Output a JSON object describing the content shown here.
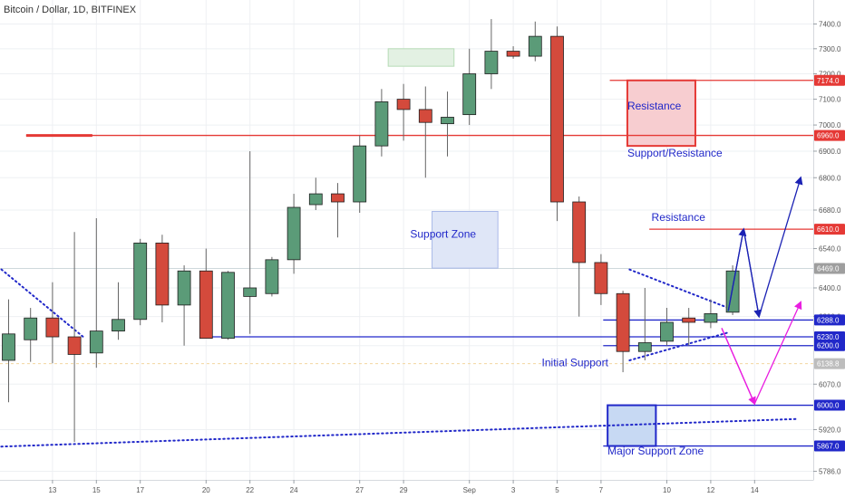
{
  "chart_data": {
    "type": "candlestick",
    "title": "Bitcoin / Dollar, 1D, BITFINEX",
    "grid": true,
    "y_axis": {
      "scale": "log",
      "range": [
        5720,
        7470
      ],
      "ticks": [
        5786.0,
        5920.0,
        6070.0,
        6200.0,
        6300.0,
        6400.0,
        6540.0,
        6680.0,
        6800.0,
        6900.0,
        7000.0,
        7100.0,
        7200.0,
        7300.0,
        7400.0
      ]
    },
    "x_axis": {
      "ticks": [
        {
          "i": 2,
          "label": "13"
        },
        {
          "i": 4,
          "label": "15"
        },
        {
          "i": 6,
          "label": "17"
        },
        {
          "i": 9,
          "label": "20"
        },
        {
          "i": 11,
          "label": "22"
        },
        {
          "i": 13,
          "label": "24"
        },
        {
          "i": 16,
          "label": "27"
        },
        {
          "i": 18,
          "label": "29"
        },
        {
          "i": 21,
          "label": "Sep"
        },
        {
          "i": 23,
          "label": "3"
        },
        {
          "i": 25,
          "label": "5"
        },
        {
          "i": 27,
          "label": "7"
        },
        {
          "i": 30,
          "label": "10"
        },
        {
          "i": 32,
          "label": "12"
        },
        {
          "i": 34,
          "label": "14"
        }
      ]
    },
    "candles": [
      {
        "o": 6150,
        "h": 6360,
        "l": 6010,
        "c": 6240
      },
      {
        "o": 6220,
        "h": 6330,
        "l": 6145,
        "c": 6295
      },
      {
        "o": 6295,
        "h": 6420,
        "l": 6140,
        "c": 6230
      },
      {
        "o": 6230,
        "h": 6600,
        "l": 5880,
        "c": 6170
      },
      {
        "o": 6175,
        "h": 6650,
        "l": 6125,
        "c": 6250
      },
      {
        "o": 6250,
        "h": 6420,
        "l": 6220,
        "c": 6290
      },
      {
        "o": 6290,
        "h": 6575,
        "l": 6270,
        "c": 6560
      },
      {
        "o": 6560,
        "h": 6590,
        "l": 6280,
        "c": 6340
      },
      {
        "o": 6340,
        "h": 6480,
        "l": 6200,
        "c": 6460
      },
      {
        "o": 6460,
        "h": 6540,
        "l": 6230,
        "c": 6225
      },
      {
        "o": 6225,
        "h": 6460,
        "l": 6220,
        "c": 6455
      },
      {
        "o": 6370,
        "h": 6900,
        "l": 6240,
        "c": 6400
      },
      {
        "o": 6380,
        "h": 6510,
        "l": 6370,
        "c": 6500
      },
      {
        "o": 6500,
        "h": 6740,
        "l": 6450,
        "c": 6690
      },
      {
        "o": 6700,
        "h": 6800,
        "l": 6680,
        "c": 6740
      },
      {
        "o": 6740,
        "h": 6780,
        "l": 6580,
        "c": 6710
      },
      {
        "o": 6710,
        "h": 6960,
        "l": 6670,
        "c": 6920
      },
      {
        "o": 6920,
        "h": 7140,
        "l": 6880,
        "c": 7090
      },
      {
        "o": 7100,
        "h": 7160,
        "l": 6940,
        "c": 7060
      },
      {
        "o": 7060,
        "h": 7150,
        "l": 6800,
        "c": 7010
      },
      {
        "o": 7005,
        "h": 7130,
        "l": 6880,
        "c": 7030
      },
      {
        "o": 7040,
        "h": 7300,
        "l": 7000,
        "c": 7200
      },
      {
        "o": 7200,
        "h": 7420,
        "l": 7140,
        "c": 7290
      },
      {
        "o": 7290,
        "h": 7310,
        "l": 7260,
        "c": 7270
      },
      {
        "o": 7270,
        "h": 7410,
        "l": 7250,
        "c": 7350
      },
      {
        "o": 7350,
        "h": 7390,
        "l": 6640,
        "c": 6710
      },
      {
        "o": 6710,
        "h": 6730,
        "l": 6300,
        "c": 6490
      },
      {
        "o": 6490,
        "h": 6520,
        "l": 6340,
        "c": 6380
      },
      {
        "o": 6380,
        "h": 6390,
        "l": 6110,
        "c": 6180
      },
      {
        "o": 6180,
        "h": 6400,
        "l": 6150,
        "c": 6210
      },
      {
        "o": 6215,
        "h": 6330,
        "l": 6200,
        "c": 6280
      },
      {
        "o": 6295,
        "h": 6330,
        "l": 6200,
        "c": 6280
      },
      {
        "o": 6280,
        "h": 6360,
        "l": 6260,
        "c": 6310
      },
      {
        "o": 6315,
        "h": 6480,
        "l": 6305,
        "c": 6460
      }
    ],
    "horizontal_lines": [
      {
        "price": 7174.0,
        "color": "#e53935",
        "from": 27.4
      },
      {
        "price": 6960.0,
        "color": "#e53935",
        "from": 0.8
      },
      {
        "price": 6610.0,
        "color": "#e53935",
        "from": 29.2
      },
      {
        "price": 6288.0,
        "color": "#2128c9",
        "from": 27.1
      },
      {
        "price": 6230.0,
        "color": "#2128c9",
        "from": 8.8
      },
      {
        "price": 6200.0,
        "color": "#2128c9",
        "from": 27.1
      },
      {
        "price": 6000.0,
        "color": "#2128c9",
        "from": 29.2
      },
      {
        "price": 5867.0,
        "color": "#2128c9",
        "from": 27.1
      }
    ],
    "price_labels": [
      {
        "price": 7174.0,
        "text": "7174.0",
        "color": "#e53935"
      },
      {
        "price": 6960.0,
        "text": "6960.0",
        "color": "#e53935"
      },
      {
        "price": 6610.0,
        "text": "6610.0",
        "color": "#e53935"
      },
      {
        "price": 6469.0,
        "text": "6469.0",
        "color": "#9e9e9e"
      },
      {
        "price": 6288.0,
        "text": "6288.0",
        "color": "#2128c9"
      },
      {
        "price": 6230.0,
        "text": "6230.0",
        "color": "#2128c9"
      },
      {
        "price": 6200.0,
        "text": "6200.0",
        "color": "#2128c9"
      },
      {
        "price": 6138.8,
        "text": "6138.8",
        "color": "#bdbdbd"
      },
      {
        "price": 6000.0,
        "text": "6000.0",
        "color": "#2128c9"
      },
      {
        "price": 5867.0,
        "text": "5867.0",
        "color": "#2128c9"
      }
    ],
    "guide_lines": [
      {
        "price": 6469.0,
        "color": "#cfd8dc"
      },
      {
        "price": 6138.8,
        "color": "#f3d6a0",
        "dash": true
      }
    ],
    "zones": [
      {
        "from": 17.3,
        "to": 20.3,
        "top": 7300,
        "bottom": 7230,
        "fill": "#e3f1e3",
        "stroke": "#b6dcb6"
      },
      {
        "from": 19.3,
        "to": 22.3,
        "top": 6675,
        "bottom": 6470,
        "fill": "#dfe6f7",
        "stroke": "#a8b8e8"
      },
      {
        "from": 28.2,
        "to": 31.3,
        "top": 7174,
        "bottom": 6920,
        "fill": "#f7cdd0",
        "stroke": "#e53935"
      },
      {
        "from": 27.3,
        "to": 29.5,
        "top": 6000,
        "bottom": 5867,
        "fill": "#c7d9f3",
        "stroke": "#2128c9"
      }
    ],
    "annotations": [
      {
        "text": "Resistance",
        "idx": 28.2,
        "price": 7060,
        "color": "#2128c9"
      },
      {
        "text": "Support/Resistance",
        "idx": 28.2,
        "price": 6880,
        "color": "#2128c9"
      },
      {
        "text": "Resistance",
        "idx": 29.3,
        "price": 6640,
        "color": "#2128c9"
      },
      {
        "text": "Support Zone",
        "idx": 18.3,
        "price": 6580,
        "color": "#2128c9"
      },
      {
        "text": "Initial Support",
        "idx": 24.3,
        "price": 6130,
        "color": "#2128c9"
      },
      {
        "text": "Major Support Zone",
        "idx": 27.3,
        "price": 5840,
        "color": "#2128c9"
      }
    ],
    "trend_lines": [
      {
        "points": [
          [
            -2.4,
            6600
          ],
          [
            3.4,
            6230
          ]
        ],
        "color": "#2128c9",
        "dotted": true
      },
      {
        "points": [
          [
            -2.4,
            5860
          ],
          [
            36.0,
            5955
          ]
        ],
        "color": "#2128c9",
        "dotted": true
      },
      {
        "points": [
          [
            28.3,
            6465
          ],
          [
            32.8,
            6330
          ]
        ],
        "color": "#2128c9",
        "dotted": true
      },
      {
        "points": [
          [
            28.3,
            6150
          ],
          [
            32.8,
            6245
          ]
        ],
        "color": "#2128c9",
        "dotted": true
      }
    ],
    "projections": [
      {
        "points": [
          [
            32.8,
            6320
          ],
          [
            33.5,
            6610
          ],
          [
            34.2,
            6300
          ],
          [
            36.1,
            6800
          ]
        ],
        "color": "#1b22b4"
      },
      {
        "points": [
          [
            32.5,
            6260
          ],
          [
            34.0,
            6005
          ],
          [
            36.1,
            6350
          ]
        ],
        "color": "#e91ee0"
      }
    ]
  }
}
